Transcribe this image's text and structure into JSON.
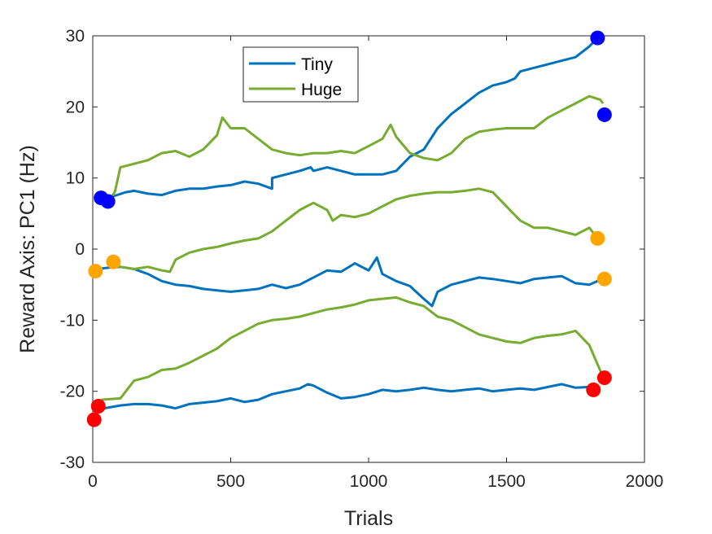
{
  "chart_data": {
    "type": "line",
    "xlabel": "Trials",
    "ylabel": "Reward Axis: PC1 (Hz)",
    "xlim": [
      0,
      2000
    ],
    "ylim": [
      -30,
      30
    ],
    "xticks": [
      "0",
      "500",
      "1000",
      "1500",
      "2000"
    ],
    "yticks": [
      "-30",
      "-20",
      "-10",
      "0",
      "10",
      "20",
      "30"
    ],
    "grid": false,
    "legend_position": "top-center",
    "legend": [
      {
        "name": "Tiny",
        "color": "#0072BD"
      },
      {
        "name": "Huge",
        "color": "#77AC30"
      }
    ],
    "series": [
      {
        "name": "Tiny",
        "color": "#0072BD",
        "x": [
          30,
          80,
          120,
          150,
          200,
          250,
          300,
          350,
          400,
          450,
          500,
          520,
          550,
          600,
          650,
          650,
          700,
          750,
          790,
          800,
          850,
          900,
          950,
          1000,
          1050,
          1100,
          1150,
          1200,
          1250,
          1300,
          1350,
          1400,
          1450,
          1500,
          1530,
          1550,
          1600,
          1650,
          1700,
          1750,
          1800,
          1830
        ],
        "y": [
          7,
          7.5,
          8,
          8.2,
          7.8,
          7.6,
          8.2,
          8.5,
          8.5,
          8.8,
          9,
          9.2,
          9.5,
          9.2,
          8.5,
          10,
          10.5,
          11,
          11.5,
          11,
          11.5,
          11,
          10.5,
          10.5,
          10.5,
          11,
          13,
          14,
          17,
          19,
          20.5,
          22,
          23,
          23.5,
          24,
          25,
          25.5,
          26,
          26.5,
          27,
          28.5,
          29.7
        ],
        "end_marker_color": "#0000ff"
      },
      {
        "name": "Tiny",
        "color": "#0072BD",
        "x": [
          20,
          60,
          100,
          150,
          200,
          250,
          300,
          350,
          400,
          450,
          500,
          550,
          600,
          650,
          700,
          750,
          800,
          850,
          900,
          950,
          1000,
          1030,
          1050,
          1100,
          1150,
          1200,
          1230,
          1250,
          1300,
          1350,
          1400,
          1450,
          1500,
          1550,
          1600,
          1650,
          1700,
          1750,
          1800,
          1830
        ],
        "y": [
          -2.8,
          -2.6,
          -2.5,
          -2.8,
          -3.5,
          -4.5,
          -5,
          -5.2,
          -5.6,
          -5.8,
          -6,
          -5.8,
          -5.6,
          -5,
          -5.5,
          -5,
          -4,
          -3,
          -3.2,
          -2,
          -3,
          -1.2,
          -3.5,
          -4.5,
          -5.2,
          -7,
          -8,
          -6,
          -5,
          -4.5,
          -4,
          -4.2,
          -4.5,
          -4.8,
          -4.2,
          -4,
          -3.8,
          -4.8,
          -5,
          -4.5
        ],
        "end_marker_color": "#FFA500"
      },
      {
        "name": "Tiny",
        "color": "#0072BD",
        "x": [
          10,
          40,
          100,
          150,
          200,
          250,
          300,
          350,
          400,
          450,
          500,
          550,
          600,
          650,
          700,
          750,
          780,
          800,
          850,
          900,
          950,
          1000,
          1050,
          1100,
          1150,
          1200,
          1250,
          1300,
          1350,
          1400,
          1450,
          1500,
          1550,
          1600,
          1650,
          1700,
          1750,
          1800,
          1815
        ],
        "y": [
          -22.8,
          -22.4,
          -22,
          -21.8,
          -21.8,
          -22,
          -22.4,
          -21.8,
          -21.6,
          -21.4,
          -21,
          -21.5,
          -21.2,
          -20.4,
          -20,
          -19.6,
          -19,
          -19.2,
          -20.2,
          -21,
          -20.8,
          -20.4,
          -19.8,
          -20,
          -19.8,
          -19.5,
          -19.8,
          -20,
          -19.8,
          -19.6,
          -20,
          -19.8,
          -19.6,
          -19.8,
          -19.4,
          -19,
          -19.5,
          -19.4,
          -19.8
        ],
        "end_marker_color": "#ff0000"
      },
      {
        "name": "Huge",
        "color": "#77AC30",
        "x": [
          60,
          80,
          100,
          150,
          200,
          250,
          300,
          350,
          400,
          450,
          470,
          500,
          550,
          600,
          650,
          700,
          750,
          800,
          850,
          900,
          950,
          1000,
          1050,
          1080,
          1100,
          1150,
          1200,
          1250,
          1300,
          1350,
          1400,
          1450,
          1500,
          1550,
          1600,
          1650,
          1700,
          1750,
          1800,
          1840,
          1850
        ],
        "y": [
          7,
          8,
          11.5,
          12,
          12.5,
          13.5,
          13.8,
          13,
          14,
          16,
          18.5,
          17,
          17,
          15.5,
          14,
          13.5,
          13.2,
          13.5,
          13.5,
          13.8,
          13.5,
          14.5,
          15.5,
          17.5,
          15.8,
          13.5,
          12.8,
          12.5,
          13.5,
          15.5,
          16.5,
          16.8,
          17,
          17,
          17,
          18.5,
          19.5,
          20.5,
          21.5,
          21,
          20.5
        ],
        "end_marker_color": "#0000ff"
      },
      {
        "name": "Huge",
        "color": "#77AC30",
        "x": [
          70,
          100,
          150,
          200,
          250,
          280,
          300,
          350,
          400,
          450,
          500,
          550,
          600,
          650,
          700,
          750,
          800,
          850,
          870,
          900,
          950,
          1000,
          1050,
          1100,
          1150,
          1200,
          1250,
          1300,
          1350,
          1400,
          1450,
          1500,
          1550,
          1600,
          1650,
          1700,
          1750,
          1800,
          1830
        ],
        "y": [
          -2,
          -2.5,
          -2.8,
          -2.5,
          -3,
          -3.2,
          -1.5,
          -0.5,
          0,
          0.3,
          0.8,
          1.2,
          1.5,
          2.5,
          4,
          5.5,
          6.5,
          5.5,
          4,
          4.8,
          4.5,
          5,
          6,
          7,
          7.5,
          7.8,
          8,
          8,
          8.2,
          8.5,
          8,
          6,
          4,
          3,
          3,
          2.5,
          2,
          3,
          1.5
        ],
        "end_marker_color": "#FFA500"
      },
      {
        "name": "Huge",
        "color": "#77AC30",
        "x": [
          30,
          100,
          150,
          200,
          250,
          300,
          350,
          400,
          450,
          500,
          550,
          600,
          650,
          700,
          750,
          800,
          850,
          900,
          950,
          1000,
          1050,
          1100,
          1150,
          1200,
          1250,
          1300,
          1350,
          1400,
          1450,
          1500,
          1550,
          1600,
          1650,
          1700,
          1750,
          1800,
          1850
        ],
        "y": [
          -21.2,
          -21,
          -18.5,
          -18,
          -17,
          -16.8,
          -16,
          -15,
          -14,
          -12.5,
          -11.5,
          -10.5,
          -10,
          -9.8,
          -9.5,
          -9,
          -8.5,
          -8.2,
          -7.8,
          -7.2,
          -7,
          -6.8,
          -7.5,
          -8,
          -9.5,
          -10,
          -11,
          -12,
          -12.5,
          -13,
          -13.2,
          -12.5,
          -12.2,
          -12,
          -11.5,
          -13.5,
          -18
        ],
        "end_marker_color": "#ff0000"
      }
    ],
    "start_markers": [
      {
        "x": 30,
        "y": 7.2,
        "color": "#0000ff"
      },
      {
        "x": 55,
        "y": 6.7,
        "color": "#0000ff"
      },
      {
        "x": 10,
        "y": -3.1,
        "color": "#FFA500"
      },
      {
        "x": 75,
        "y": -1.8,
        "color": "#FFA500"
      },
      {
        "x": 5,
        "y": -24,
        "color": "#ff0000"
      },
      {
        "x": 20,
        "y": -22.1,
        "color": "#ff0000"
      }
    ],
    "end_markers": [
      {
        "x": 1830,
        "y": 29.7,
        "color": "#0000ff"
      },
      {
        "x": 1855,
        "y": 18.9,
        "color": "#0000ff"
      },
      {
        "x": 1830,
        "y": 1.5,
        "color": "#FFA500"
      },
      {
        "x": 1855,
        "y": -4.2,
        "color": "#FFA500"
      },
      {
        "x": 1815,
        "y": -19.8,
        "color": "#ff0000"
      },
      {
        "x": 1855,
        "y": -18.1,
        "color": "#ff0000"
      }
    ]
  }
}
